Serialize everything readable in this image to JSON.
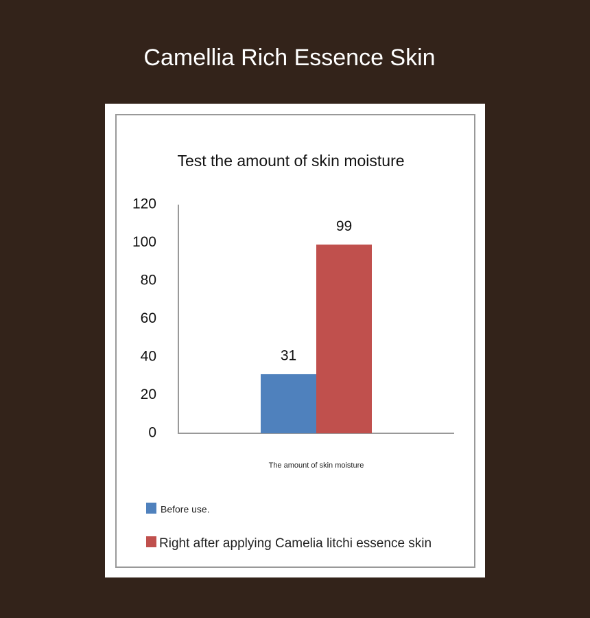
{
  "header": {
    "title": "Camellia Rich Essence Skin"
  },
  "chart_data": {
    "type": "bar",
    "title": "Test the amount of skin moisture",
    "categories": [
      "The amount of skin moisture"
    ],
    "series": [
      {
        "name": "Before use.",
        "color": "#4f81bd",
        "values": [
          31
        ]
      },
      {
        "name": "Right after applying Camelia litchi essence skin",
        "color": "#c0504d",
        "values": [
          99
        ]
      }
    ],
    "ylim": [
      0,
      120
    ],
    "yticks": [
      0,
      20,
      40,
      60,
      80,
      100,
      120
    ],
    "grid": false,
    "data_labels": true
  }
}
